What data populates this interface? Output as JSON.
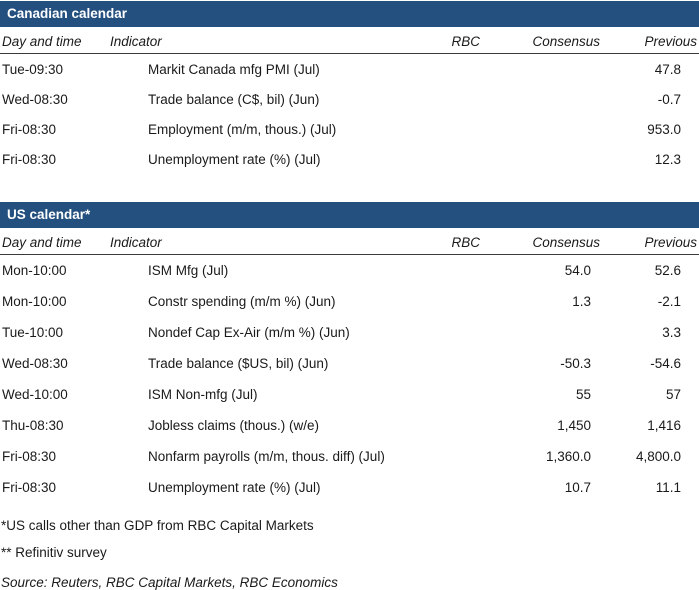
{
  "colors": {
    "title_bar_background": "#245080",
    "title_bar_text": "#ffffff",
    "body_text": "#1a1a1a",
    "header_rule": "#3a3a3a"
  },
  "tables": [
    {
      "title": "Canadian calendar",
      "columns": [
        "Day and time",
        "Indicator",
        "RBC",
        "Consensus",
        "Previous"
      ],
      "rows": [
        {
          "day": "Tue-09:30",
          "indicator": "Markit Canada mfg PMI (Jul)",
          "rbc": "",
          "consensus": "",
          "previous": "47.8"
        },
        {
          "day": "Wed-08:30",
          "indicator": "Trade balance (C$, bil) (Jun)",
          "rbc": "",
          "consensus": "",
          "previous": "-0.7"
        },
        {
          "day": "Fri-08:30",
          "indicator": "Employment (m/m, thous.) (Jul)",
          "rbc": "",
          "consensus": "",
          "previous": "953.0"
        },
        {
          "day": "Fri-08:30",
          "indicator": "Unemployment rate (%) (Jul)",
          "rbc": "",
          "consensus": "",
          "previous": "12.3"
        }
      ]
    },
    {
      "title": "US calendar*",
      "columns": [
        "Day and time",
        "Indicator",
        "RBC",
        "Consensus",
        "Previous"
      ],
      "rows": [
        {
          "day": "Mon-10:00",
          "indicator": "ISM Mfg (Jul)",
          "rbc": "",
          "consensus": "54.0",
          "previous": "52.6"
        },
        {
          "day": "Mon-10:00",
          "indicator": "Constr spending (m/m %) (Jun)",
          "rbc": "",
          "consensus": "1.3",
          "previous": "-2.1"
        },
        {
          "day": "Tue-10:00",
          "indicator": "Nondef Cap Ex-Air (m/m %) (Jun)",
          "rbc": "",
          "consensus": "",
          "previous": "3.3"
        },
        {
          "day": "Wed-08:30",
          "indicator": "Trade balance ($US, bil) (Jun)",
          "rbc": "",
          "consensus": "-50.3",
          "previous": "-54.6"
        },
        {
          "day": "Wed-10:00",
          "indicator": "ISM Non-mfg (Jul)",
          "rbc": "",
          "consensus": "55",
          "previous": "57"
        },
        {
          "day": "Thu-08:30",
          "indicator": "Jobless claims (thous.) (w/e)",
          "rbc": "",
          "consensus": "1,450",
          "previous": "1,416"
        },
        {
          "day": "Fri-08:30",
          "indicator": "Nonfarm payrolls (m/m, thous. diff) (Jul)",
          "rbc": "",
          "consensus": "1,360.0",
          "previous": "4,800.0"
        },
        {
          "day": "Fri-08:30",
          "indicator": "Unemployment rate (%) (Jul)",
          "rbc": "",
          "consensus": "10.7",
          "previous": "11.1"
        }
      ]
    }
  ],
  "footnotes": [
    "*US calls other than GDP from RBC Capital Markets",
    "** Refinitiv survey"
  ],
  "source": "Source: Reuters, RBC Capital Markets, RBC Economics"
}
